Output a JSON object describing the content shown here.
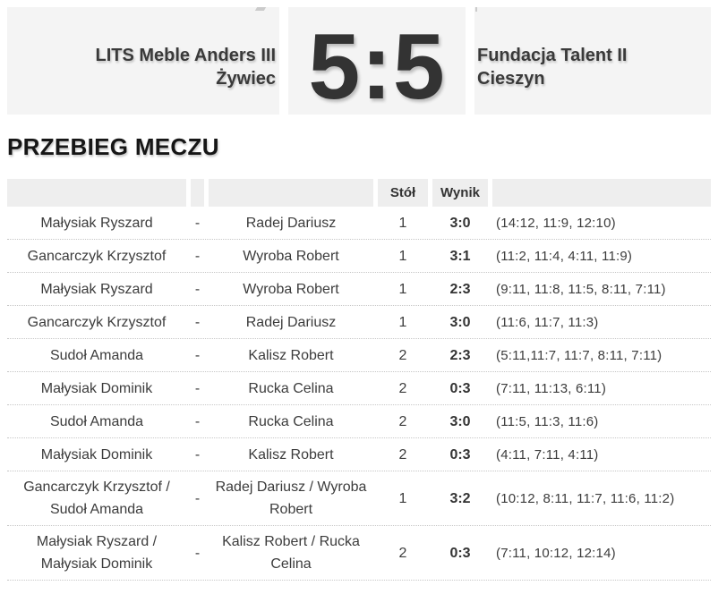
{
  "scoreboard": {
    "home_team_line1": "LITS Meble Anders III",
    "home_team_line2": "Żywiec",
    "score": "5:5",
    "away_team_line1": "Fundacja Talent II",
    "away_team_line2": "Cieszyn"
  },
  "section": {
    "title": "PRZEBIEG MECZU"
  },
  "table": {
    "headers": {
      "table": "Stół",
      "result": "Wynik"
    },
    "rows": [
      {
        "player1": "Małysiak Ryszard",
        "vs": "-",
        "player2": "Radej Dariusz",
        "table": "1",
        "result": "3:0",
        "sets": "(14:12, 11:9, 12:10)"
      },
      {
        "player1": "Gancarczyk Krzysztof",
        "vs": "-",
        "player2": "Wyroba Robert",
        "table": "1",
        "result": "3:1",
        "sets": "(11:2, 11:4, 4:11, 11:9)"
      },
      {
        "player1": "Małysiak Ryszard",
        "vs": "-",
        "player2": "Wyroba Robert",
        "table": "1",
        "result": "2:3",
        "sets": "(9:11, 11:8, 11:5, 8:11, 7:11)"
      },
      {
        "player1": "Gancarczyk Krzysztof",
        "vs": "-",
        "player2": "Radej Dariusz",
        "table": "1",
        "result": "3:0",
        "sets": "(11:6, 11:7, 11:3)"
      },
      {
        "player1": "Sudoł Amanda",
        "vs": "-",
        "player2": "Kalisz Robert",
        "table": "2",
        "result": "2:3",
        "sets": "(5:11,11:7, 11:7, 8:11, 7:11)"
      },
      {
        "player1": "Małysiak Dominik",
        "vs": "-",
        "player2": "Rucka Celina",
        "table": "2",
        "result": "0:3",
        "sets": "(7:11, 11:13, 6:11)"
      },
      {
        "player1": "Sudoł Amanda",
        "vs": "-",
        "player2": "Rucka Celina",
        "table": "2",
        "result": "3:0",
        "sets": "(11:5, 11:3, 11:6)"
      },
      {
        "player1": "Małysiak Dominik",
        "vs": "-",
        "player2": "Kalisz Robert",
        "table": "2",
        "result": "0:3",
        "sets": "(4:11, 7:11, 4:11)"
      },
      {
        "player1": "Gancarczyk Krzysztof / Sudoł Amanda",
        "vs": "-",
        "player2": "Radej Dariusz / Wyroba Robert",
        "table": "1",
        "result": "3:2",
        "sets": "(10:12, 8:11, 11:7, 11:6, 11:2)"
      },
      {
        "player1": "Małysiak Ryszard / Małysiak Dominik",
        "vs": "-",
        "player2": "Kalisz Robert / Rucka Celina",
        "table": "2",
        "result": "0:3",
        "sets": "(7:11, 10:12, 12:14)"
      }
    ]
  }
}
